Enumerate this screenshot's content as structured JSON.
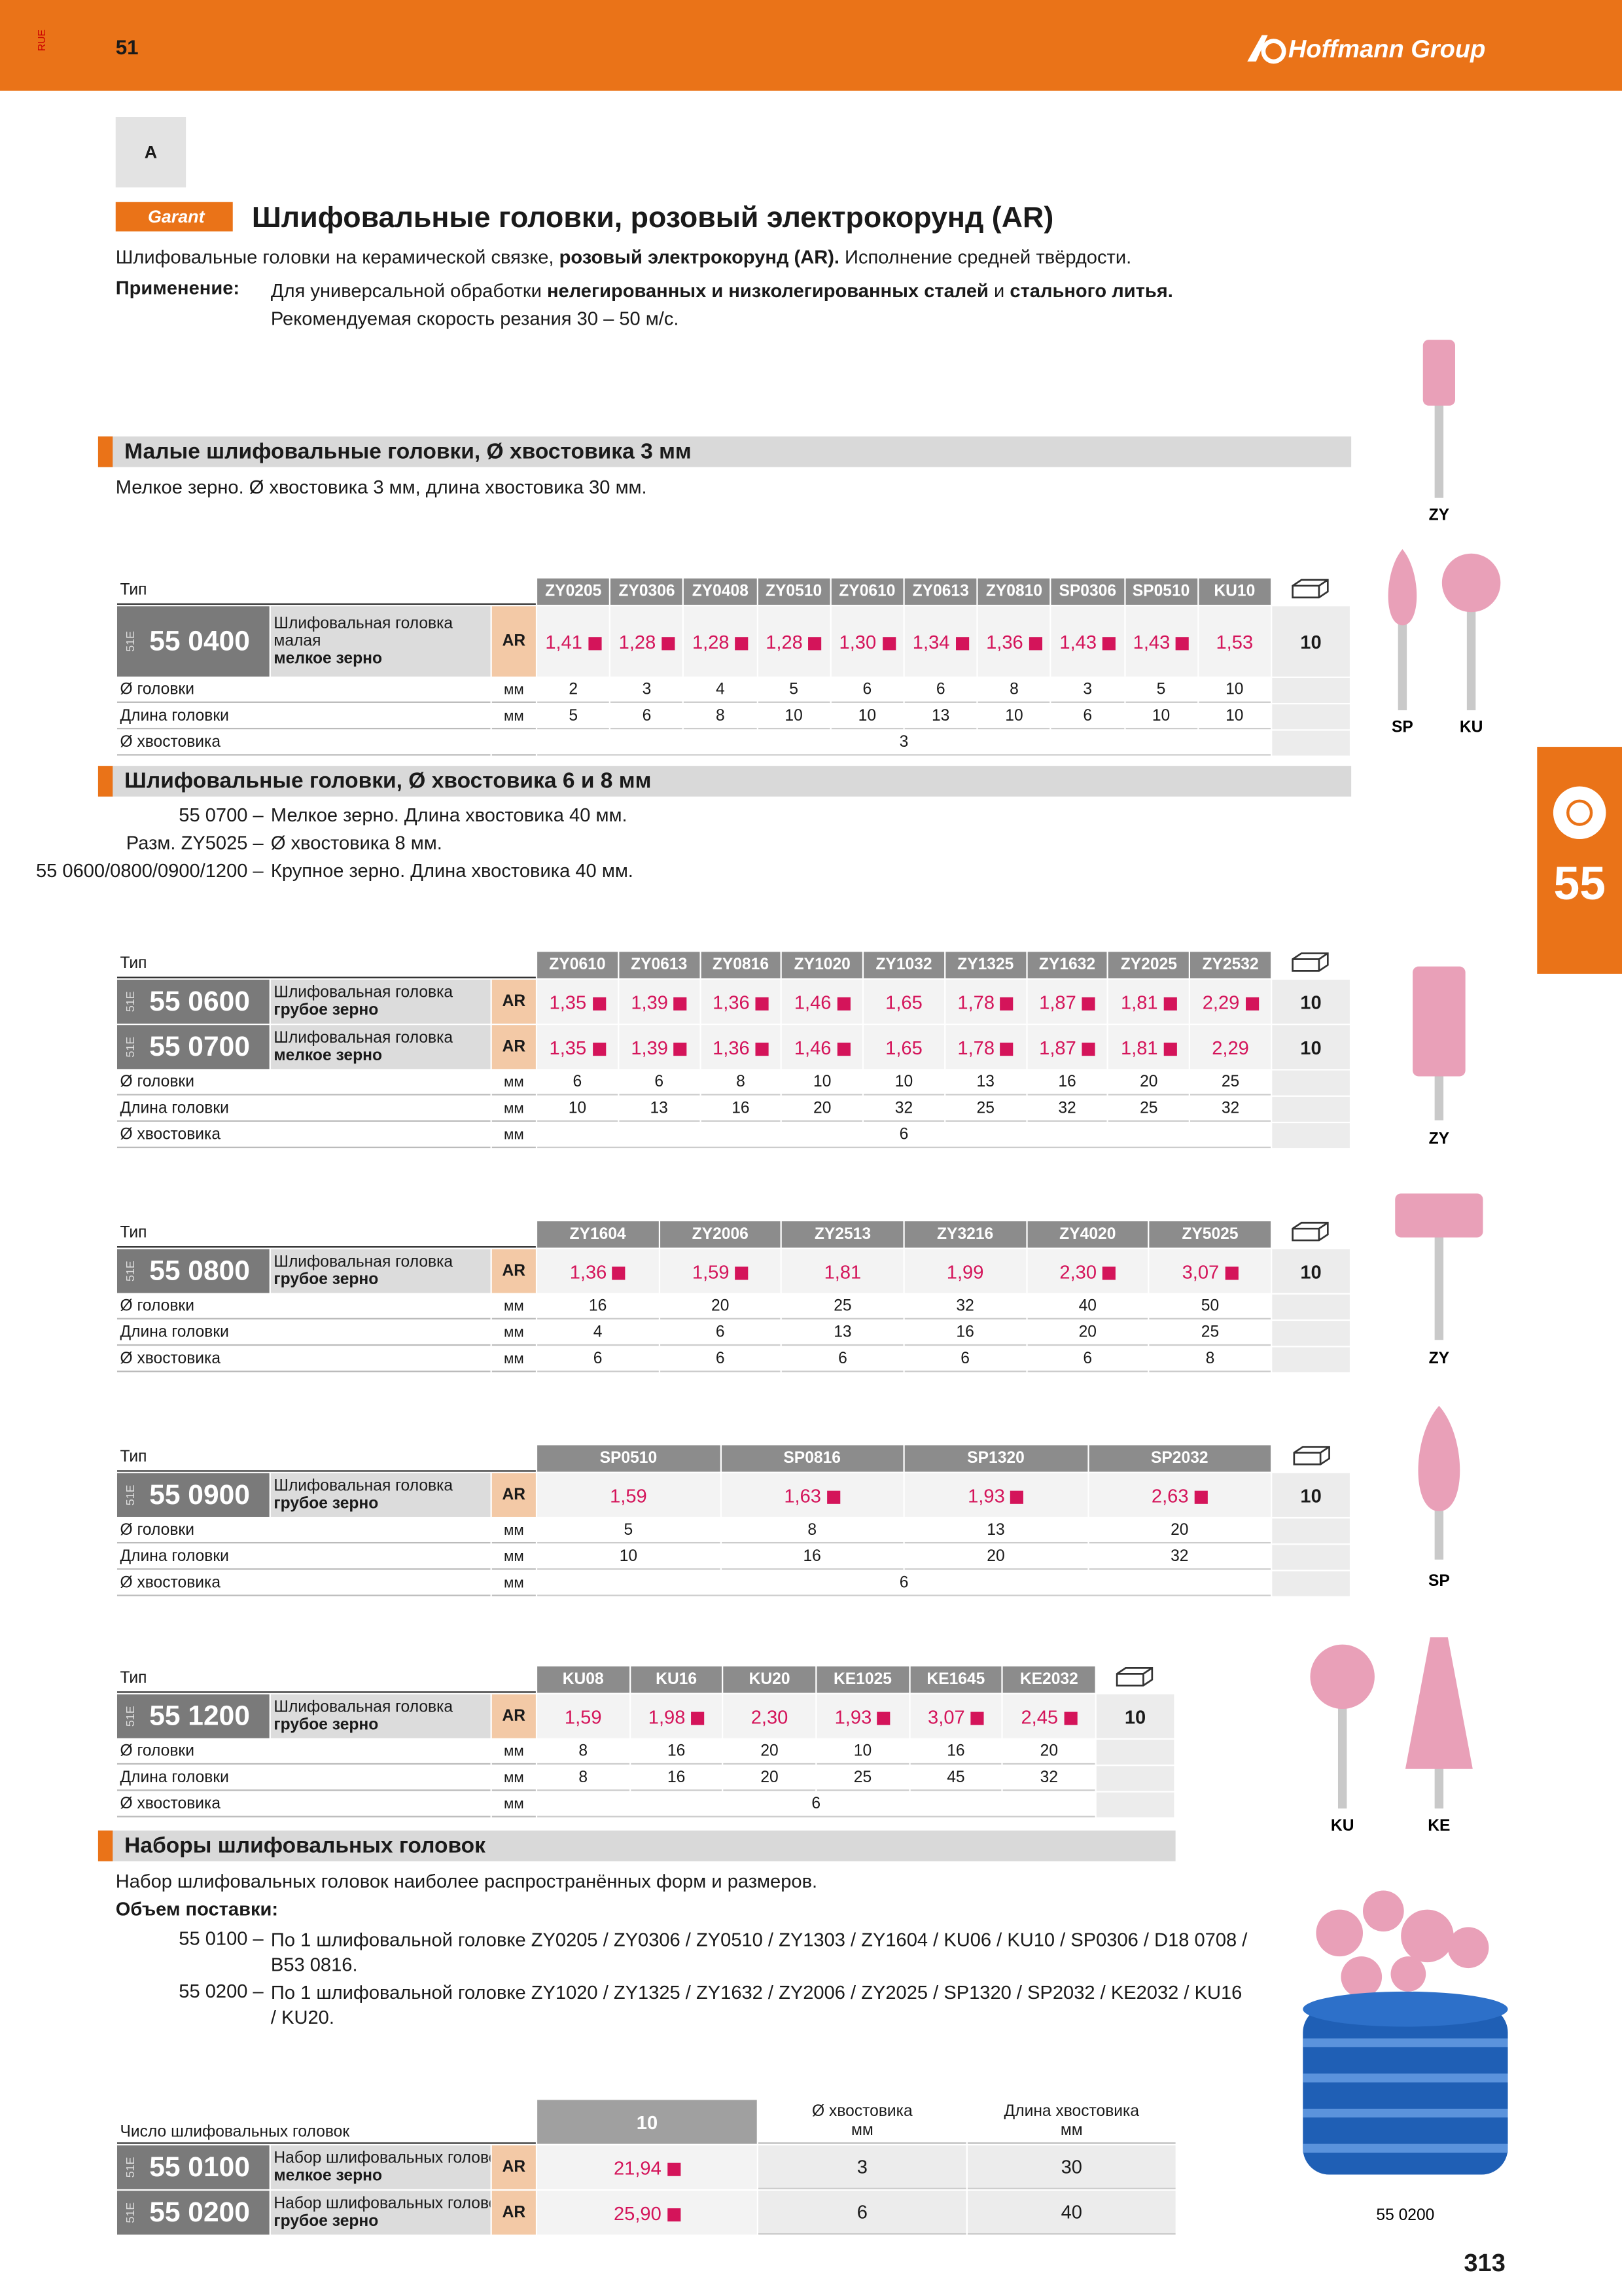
{
  "header": {
    "lang": "RUE",
    "page_ref": "51",
    "brand": "Hoffmann Group",
    "section": "A"
  },
  "title": {
    "brand": "Garant",
    "text": "Шлифовальные головки, розовый электрокорунд (AR)"
  },
  "intro": {
    "parts": [
      "Шлифовальные головки на керамической связке, ",
      "розовый электрокорунд (AR).",
      " Исполнение средней твёрдости."
    ],
    "label": "Применение:",
    "application": [
      [
        "Для универсальной обработки ",
        "нелегированных и низколегированных сталей",
        " и ",
        "стального литья."
      ],
      [
        "Рекомендуемая скорость резания 30 – 50 м/с."
      ]
    ]
  },
  "sections": [
    {
      "heading": "Малые шлифовальные головки, Ø хвостовика 3 мм",
      "notes": [
        {
          "text": "Мелкое зерно. Ø хвостовика 3 мм, длина хвостовика 30 мм."
        }
      ],
      "tables": [
        {
          "type_label": "Тип",
          "codes": [
            "ZY0205",
            "ZY0306",
            "ZY0408",
            "ZY0510",
            "ZY0610",
            "ZY0613",
            "ZY0810",
            "SP0306",
            "SP0510",
            "KU10"
          ],
          "products": [
            {
              "prefix": "51E",
              "number": "55 0400",
              "desc": [
                "Шлифовальная головка",
                "малая",
                "мелкое зерно"
              ],
              "grade": "AR",
              "prices": [
                "1,41",
                "1,28",
                "1,28",
                "1,28",
                "1,30",
                "1,34",
                "1,36",
                "1,43",
                "1,43",
                "1,53"
              ],
              "square": [
                true,
                true,
                true,
                true,
                true,
                true,
                true,
                true,
                true,
                false
              ],
              "pack": "10"
            }
          ],
          "dims": [
            {
              "label": "Ø головки",
              "unit": "мм",
              "values": [
                "2",
                "3",
                "4",
                "5",
                "6",
                "6",
                "8",
                "3",
                "5",
                "10"
              ]
            },
            {
              "label": "Длина головки",
              "unit": "мм",
              "values": [
                "5",
                "6",
                "8",
                "10",
                "10",
                "13",
                "10",
                "6",
                "10",
                "10"
              ]
            },
            {
              "label": "Ø хвостовика",
              "values": [
                "3"
              ]
            }
          ]
        }
      ]
    },
    {
      "heading": "Шлифовальные головки, Ø хвостовика 6 и 8 мм",
      "notes": [
        {
          "code": "55 0700 –",
          "text": "Мелкое зерно. Длина хвостовика 40 мм."
        },
        {
          "code": "Разм. ZY5025 –",
          "text": "Ø хвостовика 8 мм."
        },
        {
          "code": "55 0600/0800/0900/1200 –",
          "text": "Крупное зерно. Длина хвостовика 40 мм."
        }
      ],
      "tables": [
        {
          "type_label": "Тип",
          "codes": [
            "ZY0610",
            "ZY0613",
            "ZY0816",
            "ZY1020",
            "ZY1032",
            "ZY1325",
            "ZY1632",
            "ZY2025",
            "ZY2532"
          ],
          "products": [
            {
              "prefix": "51E",
              "number": "55 0600",
              "desc": [
                "Шлифовальная головка",
                "грубое зерно"
              ],
              "grade": "AR",
              "prices": [
                "1,35",
                "1,39",
                "1,36",
                "1,46",
                "1,65",
                "1,78",
                "1,87",
                "1,81",
                "2,29"
              ],
              "square": [
                true,
                true,
                true,
                true,
                false,
                true,
                true,
                true,
                true
              ],
              "pack": "10"
            },
            {
              "prefix": "51E",
              "number": "55 0700",
              "desc": [
                "Шлифовальная головка",
                "мелкое зерно"
              ],
              "grade": "AR",
              "prices": [
                "1,35",
                "1,39",
                "1,36",
                "1,46",
                "1,65",
                "1,78",
                "1,87",
                "1,81",
                "2,29"
              ],
              "square": [
                true,
                true,
                true,
                true,
                false,
                true,
                true,
                true,
                false
              ],
              "pack": "10"
            }
          ],
          "dims": [
            {
              "label": "Ø головки",
              "unit": "мм",
              "values": [
                "6",
                "6",
                "8",
                "10",
                "10",
                "13",
                "16",
                "20",
                "25"
              ]
            },
            {
              "label": "Длина головки",
              "unit": "мм",
              "values": [
                "10",
                "13",
                "16",
                "20",
                "32",
                "25",
                "32",
                "25",
                "32"
              ]
            },
            {
              "label": "Ø хвостовика",
              "unit": "мм",
              "values": [
                "6"
              ]
            }
          ]
        },
        {
          "type_label": "Тип",
          "codes": [
            "ZY1604",
            "ZY2006",
            "ZY2513",
            "ZY3216",
            "ZY4020",
            "ZY5025"
          ],
          "products": [
            {
              "prefix": "51E",
              "number": "55 0800",
              "desc": [
                "Шлифовальная головка",
                "грубое зерно"
              ],
              "grade": "AR",
              "prices": [
                "1,36",
                "1,59",
                "1,81",
                "1,99",
                "2,30",
                "3,07"
              ],
              "square": [
                true,
                true,
                false,
                false,
                true,
                true
              ],
              "pack": "10"
            }
          ],
          "dims": [
            {
              "label": "Ø головки",
              "unit": "мм",
              "values": [
                "16",
                "20",
                "25",
                "32",
                "40",
                "50"
              ]
            },
            {
              "label": "Длина головки",
              "unit": "мм",
              "values": [
                "4",
                "6",
                "13",
                "16",
                "20",
                "25"
              ]
            },
            {
              "label": "Ø хвостовика",
              "unit": "мм",
              "values": [
                "6",
                "6",
                "6",
                "6",
                "6",
                "8"
              ]
            }
          ]
        },
        {
          "type_label": "Тип",
          "codes": [
            "SP0510",
            "SP0816",
            "SP1320",
            "SP2032"
          ],
          "products": [
            {
              "prefix": "51E",
              "number": "55 0900",
              "desc": [
                "Шлифовальная головка",
                "грубое зерно"
              ],
              "grade": "AR",
              "prices": [
                "1,59",
                "1,63",
                "1,93",
                "2,63"
              ],
              "square": [
                false,
                true,
                true,
                true
              ],
              "pack": "10"
            }
          ],
          "dims": [
            {
              "label": "Ø головки",
              "unit": "мм",
              "values": [
                "5",
                "8",
                "13",
                "20"
              ]
            },
            {
              "label": "Длина головки",
              "unit": "мм",
              "values": [
                "10",
                "16",
                "20",
                "32"
              ]
            },
            {
              "label": "Ø хвостовика",
              "unit": "мм",
              "values": [
                "6"
              ]
            }
          ]
        },
        {
          "type_label": "Тип",
          "codes": [
            "KU08",
            "KU16",
            "KU20",
            "KE1025",
            "KE1645",
            "KE2032"
          ],
          "products": [
            {
              "prefix": "51E",
              "number": "55 1200",
              "desc": [
                "Шлифовальная головка",
                "грубое зерно"
              ],
              "grade": "AR",
              "prices": [
                "1,59",
                "1,98",
                "2,30",
                "1,93",
                "3,07",
                "2,45"
              ],
              "square": [
                false,
                true,
                false,
                true,
                true,
                true
              ],
              "pack": "10"
            }
          ],
          "dims": [
            {
              "label": "Ø головки",
              "unit": "мм",
              "values": [
                "8",
                "16",
                "20",
                "10",
                "16",
                "20"
              ]
            },
            {
              "label": "Длина головки",
              "unit": "мм",
              "values": [
                "8",
                "16",
                "20",
                "25",
                "45",
                "32"
              ]
            },
            {
              "label": "Ø хвостовика",
              "unit": "мм",
              "values": [
                "6"
              ]
            }
          ]
        }
      ]
    }
  ],
  "sets": {
    "heading": "Наборы шлифовальных головок",
    "text": "Набор шлифовальных головок наиболее распространённых форм и размеров.",
    "label": "Объем поставки:",
    "items": [
      {
        "code": "55 0100 –",
        "text": "По 1 шлифовальной головке ZY0205 / ZY0306 / ZY0510 / ZY1303 / ZY1604 / KU06 / KU10 / SP0306 / D18 0708 / B53 0816."
      },
      {
        "code": "55 0200 –",
        "text": "По 1 шлифовальной головке ZY1020 / ZY1325 / ZY1632 / ZY2006 / ZY2025 / SP1320 / SP2032 / KE2032 / KU16 / KU20."
      }
    ],
    "table": {
      "count_label": "Число шлифовальных головок",
      "count": "10",
      "shank": [
        "Ø хвостовика",
        "мм"
      ],
      "length": [
        "Длина хвостовика",
        "мм"
      ],
      "rows": [
        {
          "prefix": "51E",
          "number": "55 0100",
          "desc": [
            "Набор шлифовальных головок",
            "мелкое зерно"
          ],
          "grade": "AR",
          "price": "21,94",
          "square": true,
          "shank": "3",
          "length": "30"
        },
        {
          "prefix": "51E",
          "number": "55 0200",
          "desc": [
            "Набор шлифовальных головок",
            "грубое зерно"
          ],
          "grade": "AR",
          "price": "25,90",
          "square": true,
          "shank": "6",
          "length": "40"
        }
      ]
    }
  },
  "images": [
    "ZY",
    "SP",
    "KU",
    "ZY",
    "ZY",
    "SP",
    "KU",
    "KE"
  ],
  "image_caption": "55 0200",
  "side_tab": "55",
  "page_number": "313"
}
